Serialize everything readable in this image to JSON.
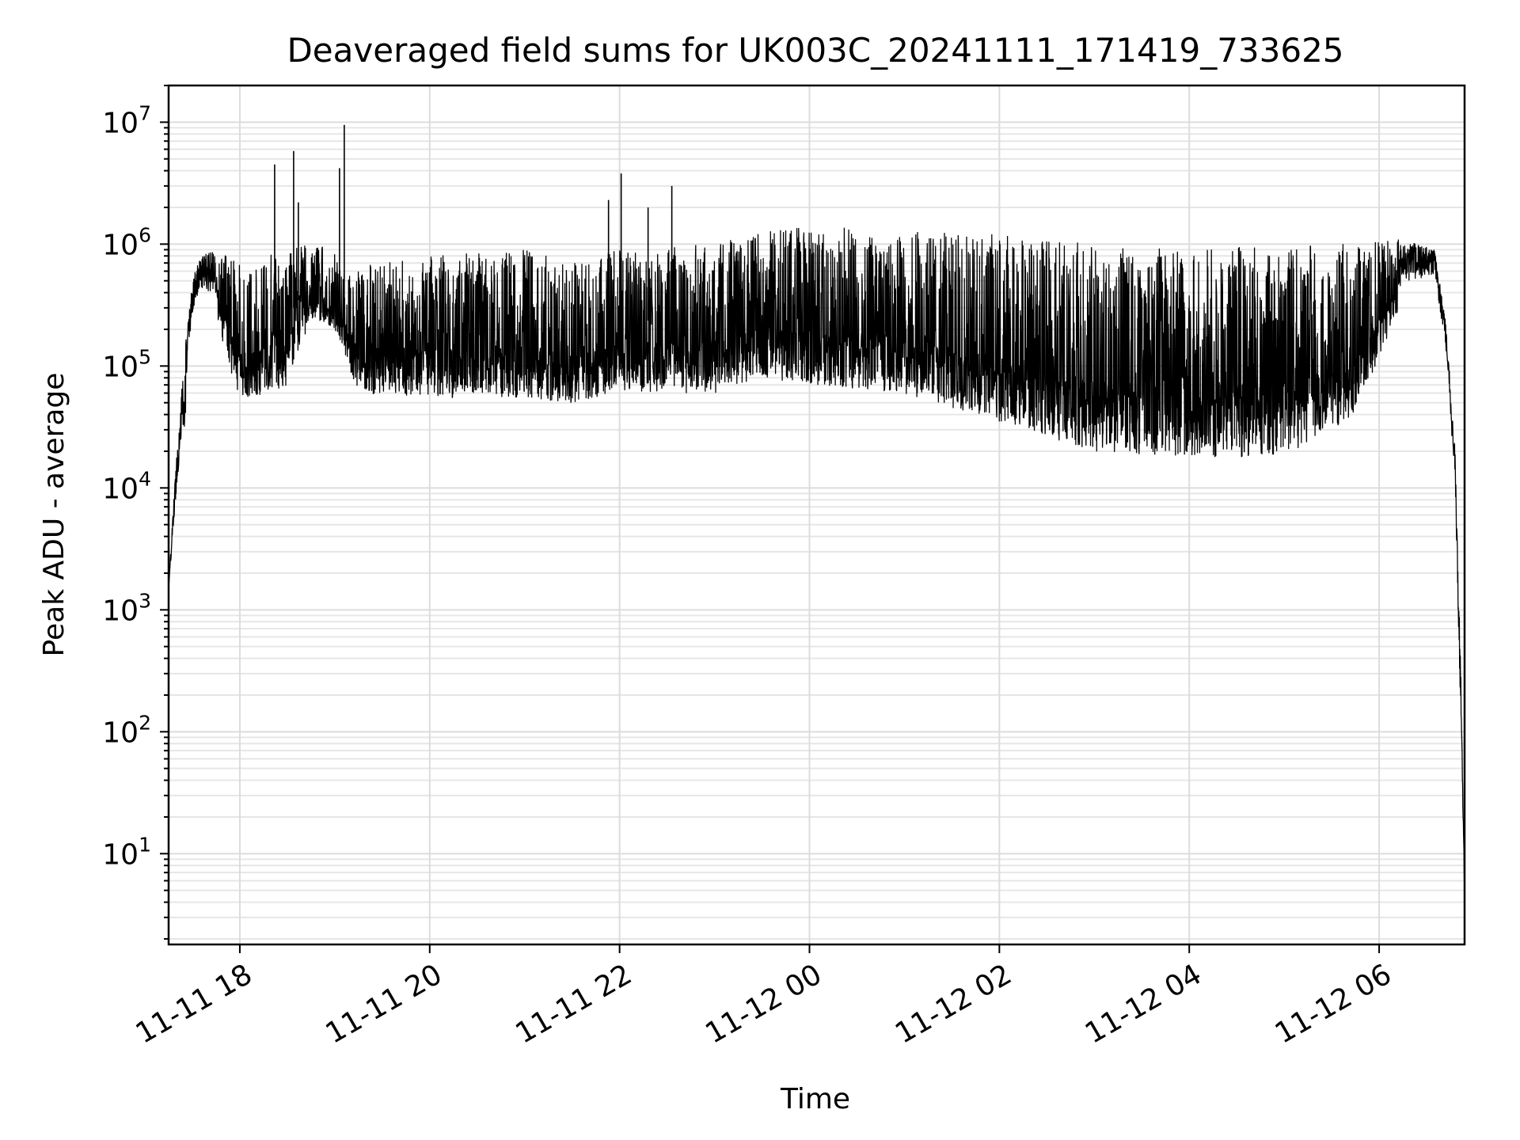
{
  "chart_data": {
    "type": "line",
    "title": "Deaveraged field sums for UK003C_20241111_171419_733625",
    "xlabel": "Time",
    "ylabel": "Peak ADU - average",
    "yscale": "log",
    "ylim": [
      1.8,
      20000000
    ],
    "xlim": [
      "2024-11-11 17:15",
      "2024-11-12 06:54"
    ],
    "grid": true,
    "x_ticks": [
      {
        "label": "11-11 18",
        "value": "2024-11-11 18:00"
      },
      {
        "label": "11-11 20",
        "value": "2024-11-11 20:00"
      },
      {
        "label": "11-11 22",
        "value": "2024-11-11 22:00"
      },
      {
        "label": "11-12 00",
        "value": "2024-11-12 00:00"
      },
      {
        "label": "11-12 02",
        "value": "2024-11-12 02:00"
      },
      {
        "label": "11-12 04",
        "value": "2024-11-12 04:00"
      },
      {
        "label": "11-12 06",
        "value": "2024-11-12 06:00"
      }
    ],
    "y_ticks": [
      {
        "base": "10",
        "exp": "1",
        "value": 10
      },
      {
        "base": "10",
        "exp": "2",
        "value": 100
      },
      {
        "base": "10",
        "exp": "3",
        "value": 1000
      },
      {
        "base": "10",
        "exp": "4",
        "value": 10000
      },
      {
        "base": "10",
        "exp": "5",
        "value": 100000
      },
      {
        "base": "10",
        "exp": "6",
        "value": 1000000
      },
      {
        "base": "10",
        "exp": "7",
        "value": 10000000
      }
    ],
    "series": [
      {
        "color": "#000000",
        "envelope": [
          {
            "t": "2024-11-11 17:15",
            "low": 1500,
            "high": 1500
          },
          {
            "t": "2024-11-11 17:20",
            "low": 7000,
            "high": 20000
          },
          {
            "t": "2024-11-11 17:25",
            "low": 30000,
            "high": 130000
          },
          {
            "t": "2024-11-11 17:30",
            "low": 200000,
            "high": 500000
          },
          {
            "t": "2024-11-11 17:35",
            "low": 350000,
            "high": 800000
          },
          {
            "t": "2024-11-11 17:45",
            "low": 250000,
            "high": 900000
          },
          {
            "t": "2024-11-11 18:00",
            "low": 50000,
            "high": 700000
          },
          {
            "t": "2024-11-11 18:30",
            "low": 70000,
            "high": 900000
          },
          {
            "t": "2024-11-11 18:45",
            "low": 250000,
            "high": 1000000
          },
          {
            "t": "2024-11-11 19:00",
            "low": 200000,
            "high": 900000
          },
          {
            "t": "2024-11-11 19:15",
            "low": 60000,
            "high": 700000
          },
          {
            "t": "2024-11-11 20:00",
            "low": 55000,
            "high": 800000
          },
          {
            "t": "2024-11-11 21:00",
            "low": 55000,
            "high": 900000
          },
          {
            "t": "2024-11-11 21:30",
            "low": 50000,
            "high": 700000
          },
          {
            "t": "2024-11-11 22:00",
            "low": 60000,
            "high": 900000
          },
          {
            "t": "2024-11-11 23:00",
            "low": 60000,
            "high": 1000000
          },
          {
            "t": "2024-11-11 23:30",
            "low": 80000,
            "high": 1300000
          },
          {
            "t": "2024-11-12 00:00",
            "low": 70000,
            "high": 1400000
          },
          {
            "t": "2024-11-12 01:00",
            "low": 60000,
            "high": 1300000
          },
          {
            "t": "2024-11-12 02:00",
            "low": 35000,
            "high": 1200000
          },
          {
            "t": "2024-11-12 03:00",
            "low": 20000,
            "high": 1000000
          },
          {
            "t": "2024-11-12 04:00",
            "low": 18000,
            "high": 900000
          },
          {
            "t": "2024-11-12 05:00",
            "low": 18000,
            "high": 1000000
          },
          {
            "t": "2024-11-12 05:45",
            "low": 40000,
            "high": 1000000
          },
          {
            "t": "2024-11-12 06:15",
            "low": 350000,
            "high": 1100000
          },
          {
            "t": "2024-11-12 06:35",
            "low": 450000,
            "high": 900000
          },
          {
            "t": "2024-11-12 06:42",
            "low": 120000,
            "high": 250000
          },
          {
            "t": "2024-11-12 06:48",
            "low": 8000,
            "high": 20000
          },
          {
            "t": "2024-11-12 06:52",
            "low": 50,
            "high": 200
          },
          {
            "t": "2024-11-12 06:54",
            "low": 4,
            "high": 5
          }
        ],
        "peaks": [
          {
            "t": "2024-11-11 18:22",
            "value": 4500000
          },
          {
            "t": "2024-11-11 18:34",
            "value": 5800000
          },
          {
            "t": "2024-11-11 18:37",
            "value": 2200000
          },
          {
            "t": "2024-11-11 19:06",
            "value": 9500000
          },
          {
            "t": "2024-11-11 19:03",
            "value": 4200000
          },
          {
            "t": "2024-11-11 21:53",
            "value": 2300000
          },
          {
            "t": "2024-11-11 22:01",
            "value": 3800000
          },
          {
            "t": "2024-11-11 22:33",
            "value": 3000000
          },
          {
            "t": "2024-11-11 22:18",
            "value": 2000000
          }
        ]
      }
    ]
  }
}
